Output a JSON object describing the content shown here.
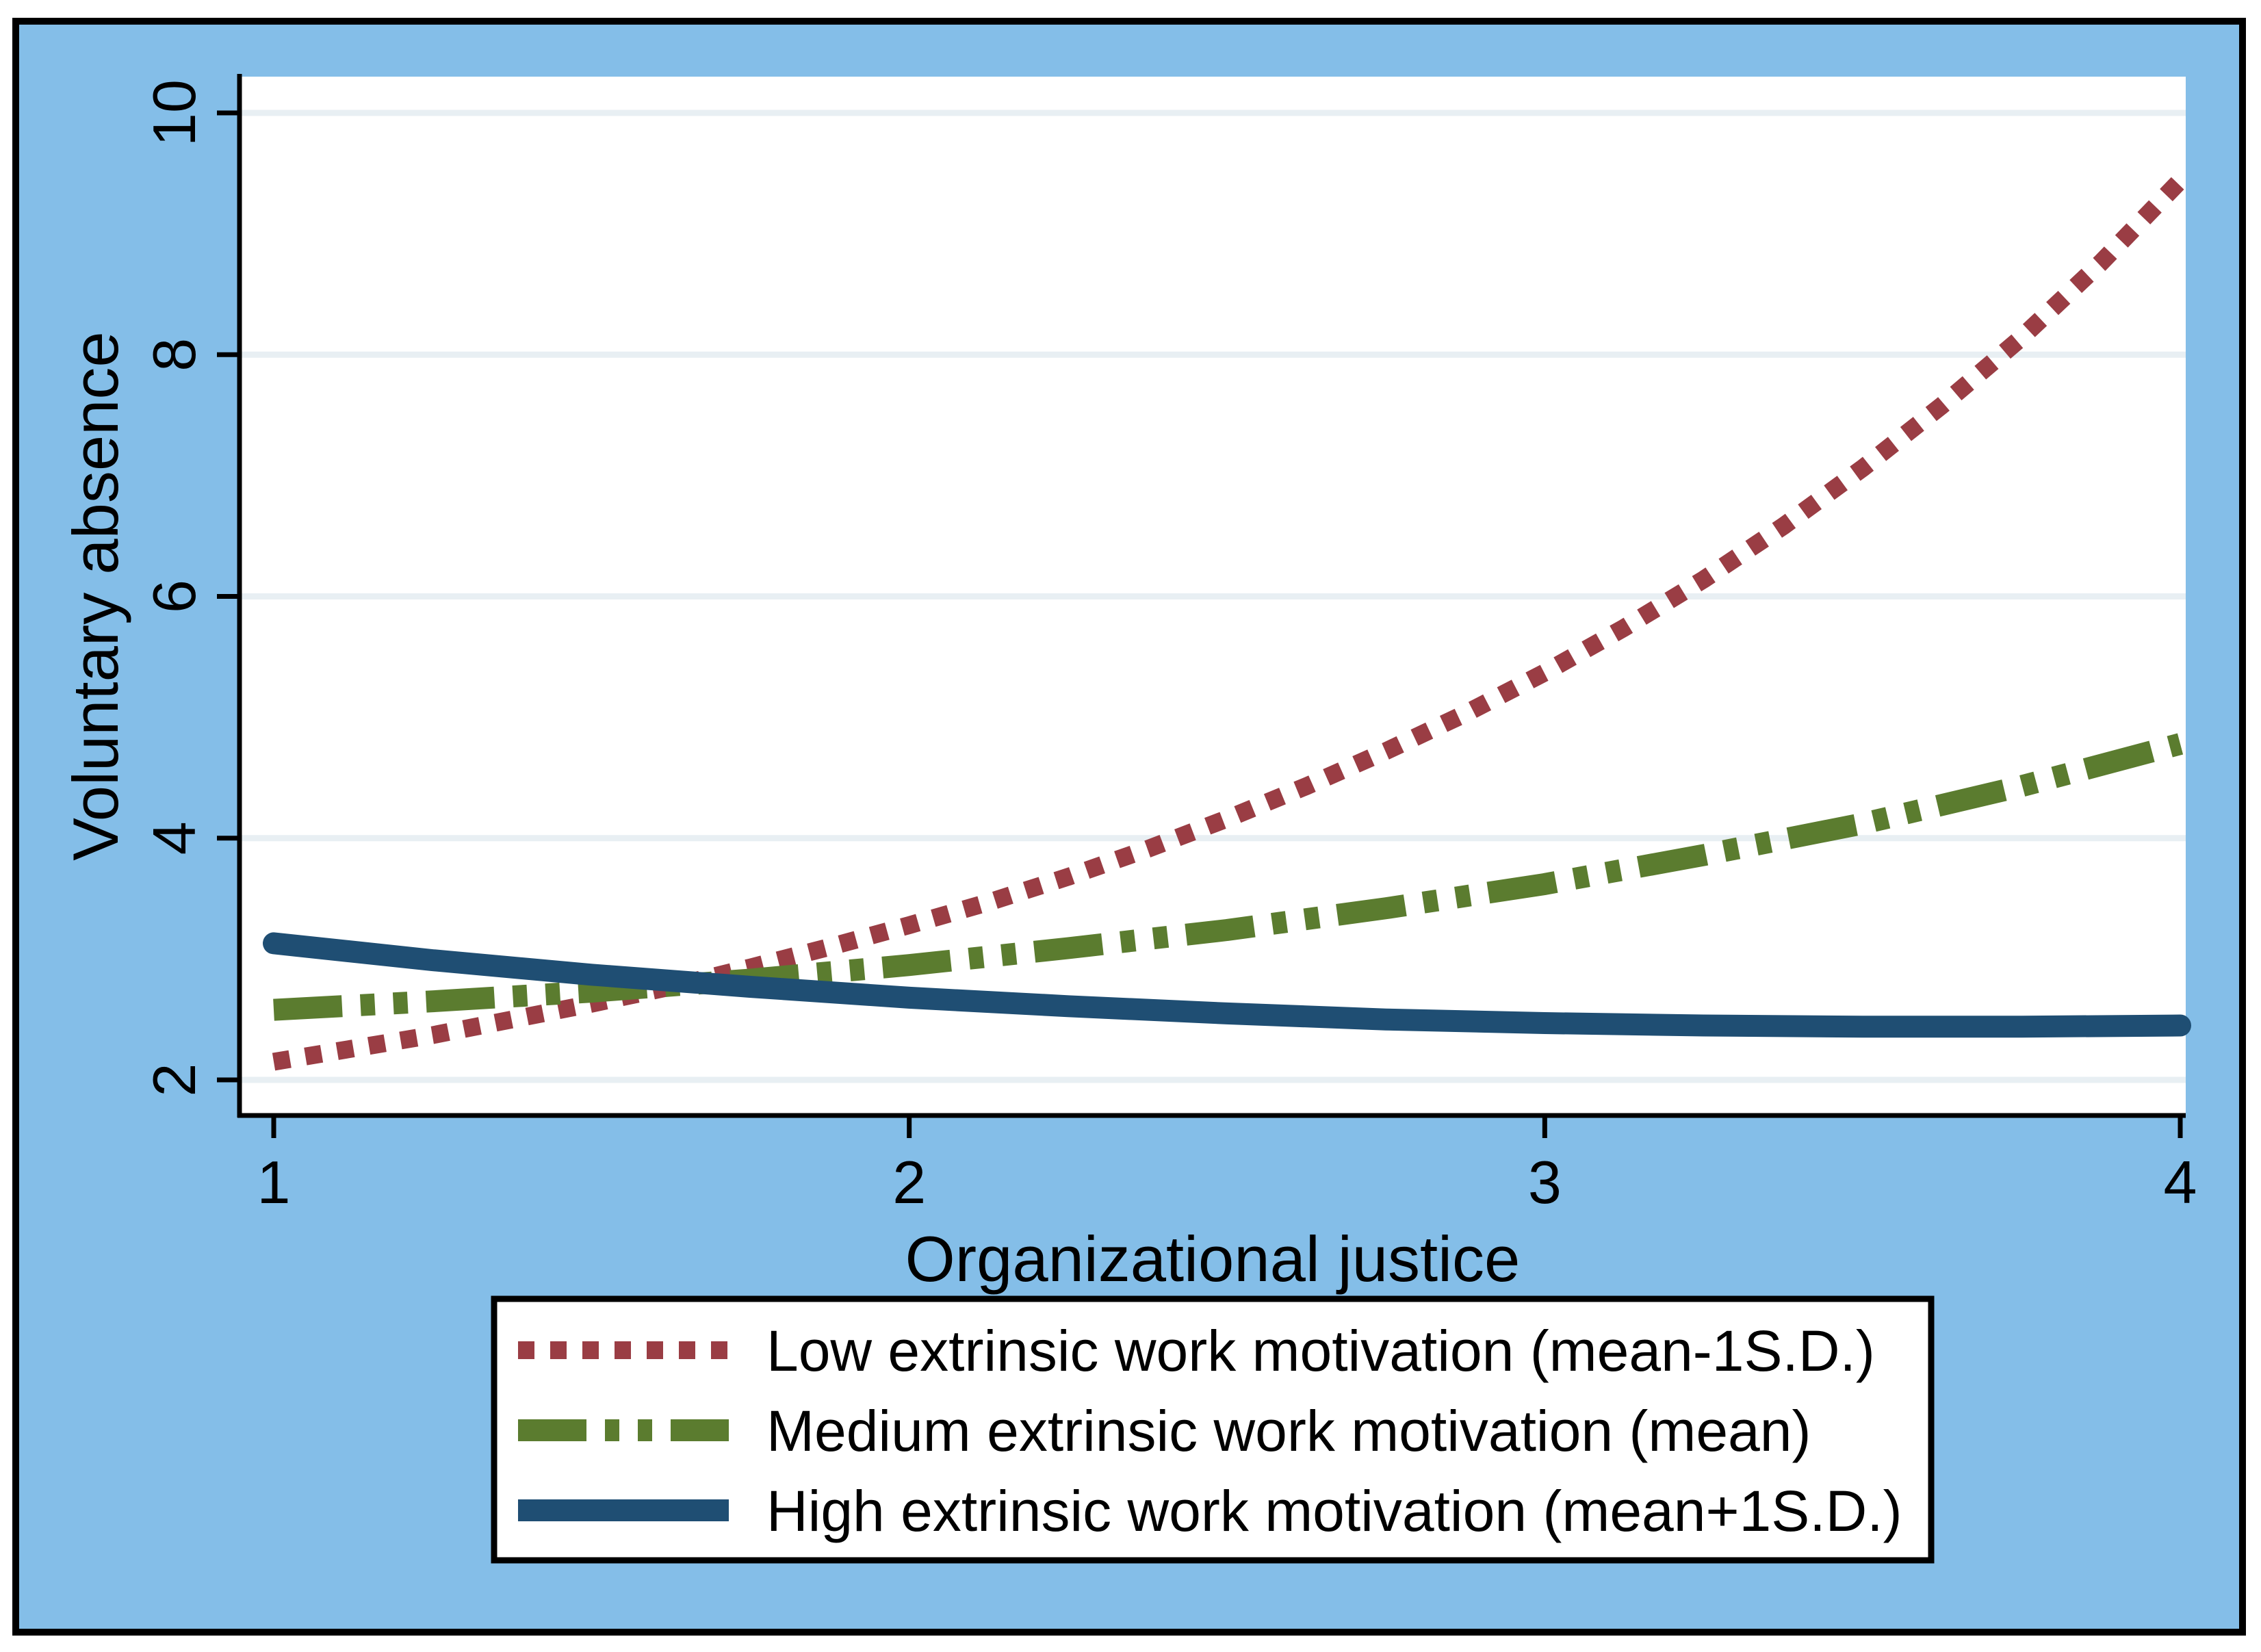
{
  "figure": {
    "background_color": "#84BEE8",
    "plot_background_color": "#FFFFFF",
    "gridline_color": "#E8EFF3",
    "frame_color": "#000000",
    "y_axis_title": "Voluntary absence",
    "x_axis_title": "Organizational justice"
  },
  "chart_data": {
    "type": "line",
    "title": "",
    "xlabel": "Organizational justice",
    "ylabel": "Voluntary absence",
    "grid": "horizontal gridlines on",
    "legend_position": "bottom",
    "x_axis": {
      "ticks": [
        1,
        2,
        3,
        4
      ],
      "range": [
        0.95,
        4.01
      ]
    },
    "y_axis": {
      "ticks": [
        2,
        4,
        6,
        8,
        10
      ],
      "range": [
        1.71,
        10.31
      ]
    },
    "series": [
      {
        "name": "Low extrinsic work motivation (mean-1S.D.)",
        "color": "#9A3D44",
        "pattern": "dot",
        "x": [
          1,
          1.125,
          1.25,
          1.375,
          1.5,
          1.625,
          1.75,
          1.875,
          2,
          2.125,
          2.25,
          2.375,
          2.5,
          2.625,
          2.75,
          2.875,
          3,
          3.125,
          3.25,
          3.375,
          3.5,
          3.625,
          3.75,
          3.875,
          4
        ],
        "y": [
          2.15,
          2.26,
          2.37,
          2.5,
          2.63,
          2.77,
          2.93,
          3.1,
          3.28,
          3.47,
          3.68,
          3.91,
          4.16,
          4.43,
          4.72,
          5.03,
          5.37,
          5.74,
          6.14,
          6.58,
          7.06,
          7.58,
          8.14,
          8.76,
          9.44
        ]
      },
      {
        "name": "Medium extrinsic work motivation (mean)",
        "color": "#5B7C2F",
        "pattern": "dash-dot-dot",
        "x": [
          1,
          1.25,
          1.5,
          1.75,
          2,
          2.25,
          2.5,
          2.75,
          3,
          3.25,
          3.5,
          3.75,
          4
        ],
        "y": [
          2.58,
          2.65,
          2.73,
          2.83,
          2.95,
          3.09,
          3.24,
          3.42,
          3.62,
          3.86,
          4.12,
          4.43,
          4.78
        ]
      },
      {
        "name": "High extrinsic work motivation (mean+1S.D.)",
        "color": "#1F4E73",
        "pattern": "solid",
        "x": [
          1,
          1.25,
          1.5,
          1.75,
          2,
          2.25,
          2.5,
          2.75,
          3,
          3.25,
          3.5,
          3.75,
          4
        ],
        "y": [
          3.13,
          2.99,
          2.87,
          2.77,
          2.68,
          2.61,
          2.55,
          2.5,
          2.47,
          2.45,
          2.44,
          2.44,
          2.45
        ]
      }
    ]
  }
}
